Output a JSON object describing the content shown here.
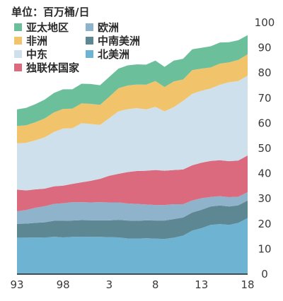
{
  "chart_data": {
    "type": "area",
    "stacked": true,
    "unit_label": "单位：百万桶/日",
    "x": [
      1993,
      1994,
      1995,
      1996,
      1997,
      1998,
      1999,
      2000,
      2001,
      2002,
      2003,
      2004,
      2005,
      2006,
      2007,
      2008,
      2009,
      2010,
      2011,
      2012,
      2013,
      2014,
      2015,
      2016,
      2017,
      2018
    ],
    "x_tick_labels": [
      "93",
      "98",
      "3",
      "8",
      "13",
      "18"
    ],
    "x_tick_values": [
      1993,
      1998,
      2003,
      2008,
      2013,
      2018
    ],
    "ylim": [
      0,
      100
    ],
    "y_ticks": [
      0,
      10,
      20,
      30,
      40,
      50,
      60,
      70,
      80,
      90,
      100
    ],
    "y_axis_side": "right",
    "legend_position": "top-left",
    "series": [
      {
        "name": "北美洲",
        "color": "#6fb3d2",
        "values": [
          14.5,
          14.5,
          14.6,
          14.5,
          14.9,
          14.6,
          14.8,
          14.9,
          14.8,
          14.8,
          14.7,
          14.6,
          14.2,
          14.1,
          14.3,
          14.1,
          14.0,
          14.5,
          15.3,
          17.3,
          18.3,
          19.6,
          19.9,
          19.6,
          20.4,
          22.3
        ]
      },
      {
        "name": "中南美洲",
        "color": "#5d8793",
        "values": [
          5.5,
          5.6,
          5.8,
          6.1,
          6.3,
          6.6,
          6.5,
          6.6,
          6.6,
          6.6,
          6.7,
          7.0,
          7.1,
          7.1,
          7.1,
          7.2,
          7.3,
          7.4,
          7.2,
          7.2,
          7.3,
          7.3,
          7.4,
          7.3,
          7.0,
          7.0
        ]
      },
      {
        "name": "欧洲",
        "color": "#8eb3cb",
        "values": [
          5.0,
          5.4,
          6.0,
          6.4,
          6.7,
          7.0,
          7.3,
          7.1,
          7.1,
          7.2,
          7.1,
          6.9,
          6.8,
          6.7,
          6.3,
          6.2,
          6.2,
          5.9,
          5.3,
          4.8,
          4.6,
          3.8,
          3.7,
          3.7,
          3.4,
          3.3
        ]
      },
      {
        "name": "独联体国家",
        "color": "#dc6a7e",
        "values": [
          8.6,
          7.8,
          7.3,
          7.0,
          7.0,
          7.0,
          7.3,
          7.9,
          8.6,
          9.3,
          10.6,
          11.4,
          12.5,
          13.1,
          13.4,
          13.9,
          13.6,
          13.6,
          13.8,
          14.0,
          14.1,
          14.3,
          14.3,
          14.3,
          14.4,
          14.6
        ]
      },
      {
        "name": "中东",
        "color": "#cfe0ed",
        "values": [
          18.4,
          18.9,
          19.5,
          20.4,
          21.6,
          22.7,
          22.1,
          23.5,
          22.6,
          21.4,
          22.9,
          24.8,
          25.0,
          25.0,
          24.4,
          25.1,
          23.6,
          25.0,
          27.3,
          28.4,
          28.6,
          28.8,
          30.0,
          31.4,
          31.6,
          31.7
        ]
      },
      {
        "name": "非洲",
        "color": "#f1c46b",
        "values": [
          6.9,
          7.0,
          7.2,
          7.5,
          7.8,
          7.8,
          7.8,
          7.9,
          8.0,
          8.0,
          8.5,
          9.2,
          9.4,
          9.4,
          9.8,
          10.3,
          9.7,
          10.2,
          8.5,
          9.4,
          8.8,
          8.4,
          8.4,
          7.9,
          8.4,
          8.5
        ]
      },
      {
        "name": "亚太地区",
        "color": "#6cbf9b",
        "values": [
          6.6,
          6.9,
          7.2,
          7.5,
          7.7,
          7.8,
          7.7,
          7.8,
          7.9,
          7.8,
          7.9,
          7.8,
          8.0,
          8.0,
          8.0,
          8.1,
          8.0,
          8.3,
          8.2,
          8.3,
          8.3,
          8.4,
          8.4,
          8.0,
          7.8,
          7.6
        ]
      }
    ]
  },
  "legend": [
    {
      "label": "亚太地区",
      "color": "#6cbf9b"
    },
    {
      "label": "欧洲",
      "color": "#8eb3cb"
    },
    {
      "label": "非洲",
      "color": "#f1c46b"
    },
    {
      "label": "中南美洲",
      "color": "#5d8793"
    },
    {
      "label": "中东",
      "color": "#cfe0ed"
    },
    {
      "label": "北美洲",
      "color": "#6fb3d2"
    },
    {
      "label": "独联体国家",
      "color": "#dc6a7e"
    }
  ]
}
